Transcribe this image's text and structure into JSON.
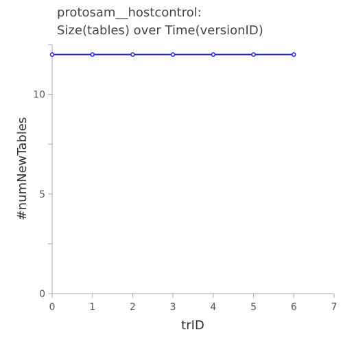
{
  "chart_data": {
    "type": "line",
    "title": [
      "protosam__hostcontrol:",
      "Size(tables) over Time(versionID)"
    ],
    "xlabel": "trID",
    "ylabel": "#numNewTables",
    "xlim": [
      0,
      7
    ],
    "ylim": [
      0,
      12.5
    ],
    "x_ticks": [
      0,
      1,
      2,
      3,
      4,
      5,
      6,
      7
    ],
    "y_ticks_labeled": [
      0,
      5,
      10
    ],
    "y_ticks_minor": [
      2.5,
      7.5,
      12.5
    ],
    "grid": false,
    "legend": "none",
    "series": [
      {
        "x": [
          0,
          1,
          2,
          3,
          4,
          5,
          6
        ],
        "values": [
          12,
          12,
          12,
          12,
          12,
          12,
          12
        ],
        "color": "#1f1fef"
      }
    ]
  }
}
